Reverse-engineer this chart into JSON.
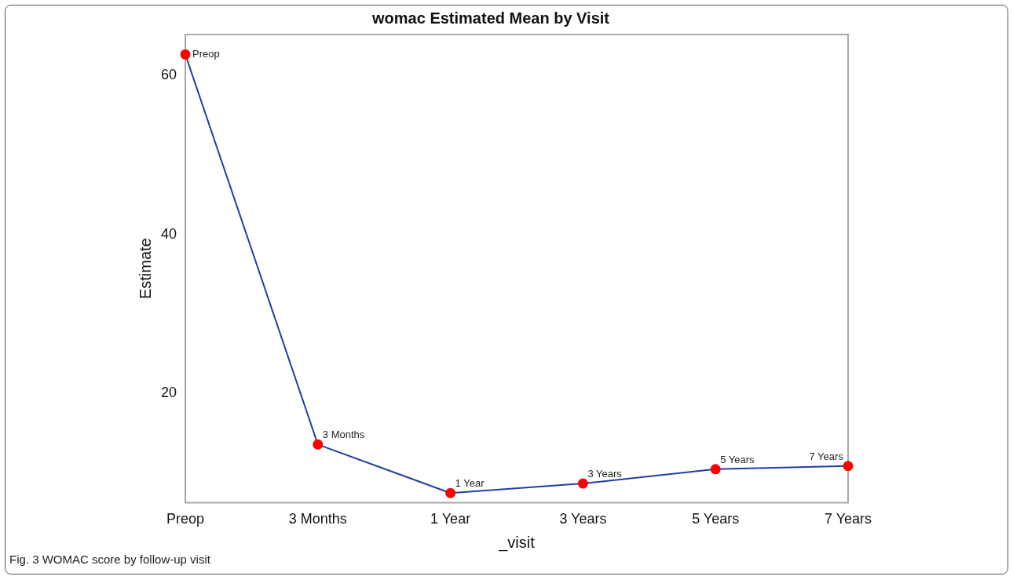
{
  "chart_data": {
    "type": "line",
    "title": "womac Estimated Mean by Visit",
    "xlabel": "_visit",
    "ylabel": "Estimate",
    "categories": [
      "Preop",
      "3 Months",
      "1 Year",
      "3 Years",
      "5 Years",
      "7 Years"
    ],
    "series": [
      {
        "color": "#1f3fa6",
        "values": [
          62.6,
          13.6,
          7.5,
          8.7,
          10.5,
          10.9
        ]
      }
    ],
    "ylim": [
      6.3,
      65.1
    ],
    "yticks": [
      20,
      40,
      60
    ],
    "grid": false,
    "legend": false,
    "marker": "circle",
    "line_style": "solid",
    "annotations": [
      {
        "text": "Preop",
        "x": "Preop",
        "y": 62.6
      },
      {
        "text": "3 Months",
        "x": "3 Months",
        "y": 13.6
      },
      {
        "text": "1 Year",
        "x": "1 Year",
        "y": 7.5
      },
      {
        "text": "3 Years",
        "x": "3 Years",
        "y": 8.7
      },
      {
        "text": "5 Years",
        "x": "5 Years",
        "y": 10.5
      },
      {
        "text": "7 Years",
        "x": "7 Years",
        "y": 10.9
      },
      "Fig. 3 WOMAC score by follow-up visit"
    ]
  }
}
